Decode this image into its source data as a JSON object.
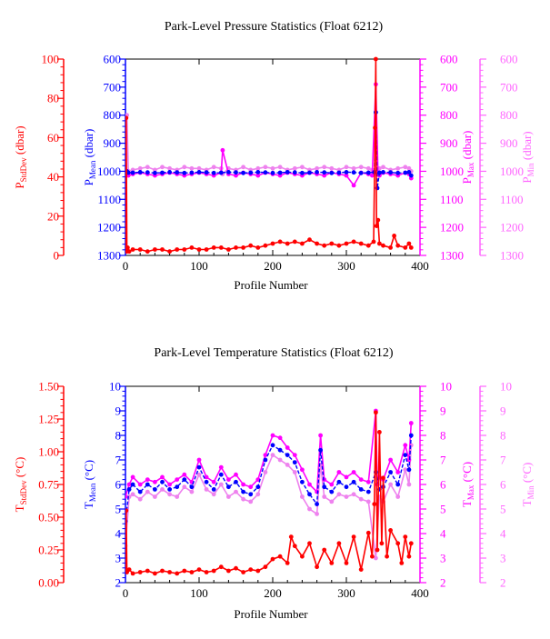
{
  "chart_data": [
    {
      "type": "line",
      "title": "Park-Level Pressure Statistics (Float 6212)",
      "xlabel": "Profile Number",
      "xlim": [
        0,
        400
      ],
      "xticks": [
        "0",
        "100",
        "200",
        "300",
        "400"
      ],
      "axes": {
        "left_outer": {
          "label_main": "P",
          "label_sub": "StdDev",
          "label_unit": " (dbar)",
          "color": "#ff0000",
          "lim": [
            0,
            100
          ],
          "ticks": [
            "0",
            "20",
            "40",
            "60",
            "80",
            "100"
          ]
        },
        "left_inner": {
          "label_main": "P",
          "label_sub": "Mean",
          "label_unit": " (dbar)",
          "color": "#0000ff",
          "lim": [
            1300,
            600
          ],
          "ticks": [
            "600",
            "700",
            "800",
            "900",
            "1000",
            "1100",
            "1200",
            "1300"
          ]
        },
        "right_inner": {
          "label_main": "P",
          "label_sub": "Max",
          "label_unit": " (dbar)",
          "color": "#ff00ff",
          "lim": [
            1300,
            600
          ],
          "ticks": [
            "600",
            "700",
            "800",
            "900",
            "1000",
            "1100",
            "1200",
            "1300"
          ]
        },
        "right_outer": {
          "label_main": "P",
          "label_sub": "Min",
          "label_unit": " (dbar)",
          "color": "#ff66ff",
          "lim": [
            1300,
            600
          ],
          "ticks": [
            "600",
            "700",
            "800",
            "900",
            "1000",
            "1100",
            "1200",
            "1300"
          ]
        }
      },
      "series": [
        {
          "axis": "right_outer",
          "color": "#ee82ee",
          "x": [
            0,
            2,
            4,
            10,
            20,
            30,
            40,
            50,
            60,
            70,
            80,
            90,
            100,
            110,
            120,
            130,
            132,
            140,
            150,
            160,
            170,
            180,
            190,
            200,
            210,
            220,
            230,
            240,
            250,
            260,
            270,
            280,
            290,
            300,
            310,
            320,
            330,
            335,
            340,
            343,
            345,
            350,
            360,
            370,
            380,
            385,
            388
          ],
          "values": [
            995,
            800,
            1000,
            995,
            990,
            985,
            995,
            985,
            990,
            995,
            985,
            990,
            990,
            995,
            985,
            990,
            1010,
            990,
            995,
            985,
            995,
            990,
            985,
            990,
            985,
            995,
            990,
            985,
            995,
            990,
            985,
            990,
            995,
            985,
            990,
            985,
            990,
            995,
            1010,
            995,
            990,
            985,
            995,
            990,
            985,
            990,
            1000
          ]
        },
        {
          "axis": "right_inner",
          "color": "#ff00ff",
          "x": [
            0,
            2,
            4,
            10,
            20,
            30,
            40,
            50,
            60,
            70,
            80,
            90,
            100,
            110,
            120,
            130,
            132,
            140,
            150,
            160,
            170,
            180,
            190,
            200,
            210,
            220,
            230,
            240,
            250,
            260,
            270,
            280,
            290,
            300,
            310,
            320,
            330,
            335,
            340,
            343,
            345,
            350,
            360,
            370,
            380,
            385,
            388
          ],
          "values": [
            1010,
            1000,
            1015,
            1010,
            1005,
            1010,
            1015,
            1010,
            1005,
            1010,
            1015,
            1010,
            1005,
            1010,
            1015,
            1005,
            925,
            1010,
            1015,
            1005,
            1010,
            1015,
            1005,
            1010,
            1015,
            1005,
            1010,
            1015,
            1005,
            1010,
            1015,
            1005,
            1010,
            1015,
            1050,
            1005,
            1010,
            1015,
            690,
            1010,
            1015,
            1005,
            1010,
            1015,
            1005,
            1010,
            1025
          ]
        },
        {
          "axis": "left_inner",
          "color": "#0000ff",
          "x": [
            0,
            2,
            4,
            10,
            20,
            30,
            40,
            50,
            60,
            70,
            80,
            90,
            100,
            110,
            120,
            130,
            140,
            150,
            160,
            170,
            180,
            190,
            200,
            210,
            220,
            230,
            240,
            250,
            260,
            270,
            280,
            290,
            300,
            310,
            320,
            330,
            338,
            340,
            342,
            345,
            350,
            360,
            370,
            380,
            385,
            388
          ],
          "values": [
            1005,
            1000,
            1005,
            1005,
            1003,
            1004,
            1006,
            1005,
            1003,
            1004,
            1006,
            1005,
            1003,
            1004,
            1006,
            1005,
            1003,
            1004,
            1006,
            1005,
            1003,
            1004,
            1006,
            1005,
            1003,
            1004,
            1006,
            1005,
            1003,
            1004,
            1006,
            1005,
            1003,
            1004,
            1006,
            1005,
            1003,
            790,
            1060,
            1005,
            1003,
            1004,
            1006,
            1005,
            1003,
            1015
          ]
        },
        {
          "axis": "left_outer",
          "color": "#ff0000",
          "x": [
            0,
            1,
            2,
            3,
            5,
            10,
            20,
            30,
            40,
            50,
            60,
            70,
            80,
            90,
            100,
            110,
            120,
            130,
            140,
            150,
            160,
            170,
            180,
            190,
            200,
            210,
            220,
            230,
            240,
            250,
            260,
            270,
            280,
            290,
            300,
            310,
            320,
            330,
            337,
            339,
            340,
            341,
            343,
            345,
            350,
            360,
            365,
            370,
            380,
            385,
            388
          ],
          "values": [
            4,
            70,
            2,
            4,
            2,
            3,
            3,
            2,
            3,
            3,
            2,
            3,
            3,
            4,
            3,
            3,
            4,
            4,
            3,
            4,
            4,
            5,
            4,
            5,
            6,
            7,
            6,
            7,
            6,
            8,
            6,
            5,
            6,
            5,
            6,
            7,
            6,
            5,
            7,
            65,
            100,
            15,
            18,
            6,
            5,
            4,
            10,
            5,
            4,
            6,
            4
          ]
        }
      ]
    },
    {
      "type": "line",
      "title": "Park-Level Temperature Statistics (Float 6212)",
      "xlabel": "Profile Number",
      "xlim": [
        0,
        400
      ],
      "xticks": [
        "0",
        "100",
        "200",
        "300",
        "400"
      ],
      "axes": {
        "left_outer": {
          "label_main": "T",
          "label_sub": "StdDev",
          "label_unit": " (°C)",
          "color": "#ff0000",
          "lim": [
            0,
            1.5
          ],
          "ticks": [
            "0.00",
            "0.25",
            "0.50",
            "0.75",
            "1.00",
            "1.25",
            "1.50"
          ]
        },
        "left_inner": {
          "label_main": "T",
          "label_sub": "Mean",
          "label_unit": " (°C)",
          "color": "#0000ff",
          "lim": [
            2,
            10
          ],
          "ticks": [
            "2",
            "3",
            "4",
            "5",
            "6",
            "7",
            "8",
            "9",
            "10"
          ]
        },
        "right_inner": {
          "label_main": "T",
          "label_sub": "Max",
          "label_unit": " (°C)",
          "color": "#ff00ff",
          "lim": [
            2,
            10
          ],
          "ticks": [
            "2",
            "3",
            "4",
            "5",
            "6",
            "7",
            "8",
            "9",
            "10"
          ]
        },
        "right_outer": {
          "label_main": "T",
          "label_sub": "Min",
          "label_unit": " (°C)",
          "color": "#ff66ff",
          "lim": [
            2,
            10
          ],
          "ticks": [
            "2",
            "3",
            "4",
            "5",
            "6",
            "7",
            "8",
            "9",
            "10"
          ]
        }
      },
      "series": [
        {
          "axis": "right_outer",
          "color": "#ee82ee",
          "x": [
            0,
            5,
            10,
            20,
            30,
            40,
            50,
            60,
            70,
            80,
            90,
            100,
            110,
            120,
            130,
            140,
            150,
            160,
            170,
            180,
            190,
            200,
            210,
            220,
            230,
            240,
            250,
            260,
            265,
            270,
            280,
            290,
            300,
            310,
            320,
            330,
            340,
            345,
            350,
            360,
            370,
            380,
            385,
            388
          ],
          "values": [
            3.5,
            5.5,
            5.6,
            5.4,
            5.7,
            5.5,
            5.8,
            5.6,
            5.5,
            5.9,
            5.7,
            6.4,
            5.8,
            5.6,
            6.0,
            5.5,
            5.7,
            5.4,
            5.3,
            5.6,
            6.5,
            7.2,
            7.0,
            6.8,
            6.5,
            5.5,
            5.0,
            4.8,
            6.8,
            5.5,
            5.3,
            5.6,
            5.5,
            5.6,
            5.4,
            5.3,
            3.0,
            5.5,
            5.3,
            6.0,
            5.5,
            6.6,
            6.0,
            7.6
          ]
        },
        {
          "axis": "right_inner",
          "color": "#ff00ff",
          "x": [
            0,
            5,
            10,
            20,
            30,
            40,
            50,
            60,
            70,
            80,
            90,
            100,
            110,
            120,
            130,
            140,
            150,
            160,
            170,
            180,
            190,
            200,
            210,
            220,
            230,
            240,
            250,
            260,
            265,
            270,
            280,
            290,
            300,
            310,
            320,
            330,
            340,
            342,
            345,
            350,
            360,
            370,
            380,
            385,
            388
          ],
          "values": [
            5.5,
            6.0,
            6.3,
            6.0,
            6.2,
            6.1,
            6.3,
            6.0,
            6.2,
            6.4,
            6.1,
            7.0,
            6.3,
            6.1,
            6.7,
            6.2,
            6.4,
            6.0,
            5.9,
            6.2,
            7.2,
            8.0,
            7.9,
            7.5,
            7.2,
            6.6,
            6.0,
            5.7,
            8.0,
            6.2,
            6.0,
            6.5,
            6.3,
            6.5,
            6.2,
            6.1,
            9.0,
            6.0,
            6.3,
            6.2,
            7.0,
            6.5,
            7.6,
            7.0,
            8.5
          ]
        },
        {
          "axis": "left_inner",
          "color": "#0000ff",
          "x": [
            0,
            5,
            10,
            20,
            30,
            40,
            50,
            60,
            70,
            80,
            90,
            100,
            110,
            120,
            130,
            140,
            150,
            160,
            170,
            180,
            190,
            200,
            210,
            220,
            230,
            240,
            250,
            260,
            265,
            270,
            280,
            290,
            300,
            310,
            320,
            330,
            340,
            345,
            350,
            360,
            370,
            380,
            385,
            388
          ],
          "values": [
            4.5,
            5.8,
            6.0,
            5.7,
            6.0,
            5.8,
            6.1,
            5.8,
            5.9,
            6.2,
            5.9,
            6.7,
            6.1,
            5.8,
            6.4,
            5.9,
            6.1,
            5.7,
            5.6,
            5.9,
            7.0,
            7.6,
            7.4,
            7.2,
            6.9,
            6.1,
            5.6,
            5.2,
            7.4,
            5.9,
            5.7,
            6.1,
            5.9,
            6.1,
            5.8,
            5.7,
            6.5,
            5.8,
            5.9,
            6.5,
            6.0,
            7.2,
            6.6,
            8.0
          ]
        },
        {
          "axis": "left_outer",
          "color": "#ff0000",
          "x": [
            0,
            1,
            2,
            5,
            10,
            20,
            30,
            40,
            50,
            60,
            70,
            80,
            90,
            100,
            110,
            120,
            130,
            140,
            150,
            160,
            170,
            180,
            190,
            200,
            210,
            220,
            225,
            230,
            240,
            250,
            260,
            270,
            280,
            290,
            300,
            310,
            320,
            330,
            335,
            338,
            340,
            342,
            345,
            348,
            350,
            355,
            360,
            370,
            375,
            380,
            385,
            388
          ],
          "values": [
            0.1,
            0.55,
            0.08,
            0.1,
            0.07,
            0.08,
            0.09,
            0.07,
            0.09,
            0.08,
            0.07,
            0.09,
            0.08,
            0.1,
            0.08,
            0.09,
            0.12,
            0.09,
            0.11,
            0.08,
            0.1,
            0.09,
            0.12,
            0.18,
            0.2,
            0.15,
            0.35,
            0.28,
            0.2,
            0.3,
            0.12,
            0.25,
            0.15,
            0.3,
            0.15,
            0.35,
            0.1,
            0.38,
            0.2,
            0.6,
            1.3,
            0.25,
            1.15,
            0.3,
            0.8,
            0.2,
            0.4,
            0.3,
            0.15,
            0.35,
            0.2,
            0.3
          ]
        }
      ]
    }
  ]
}
